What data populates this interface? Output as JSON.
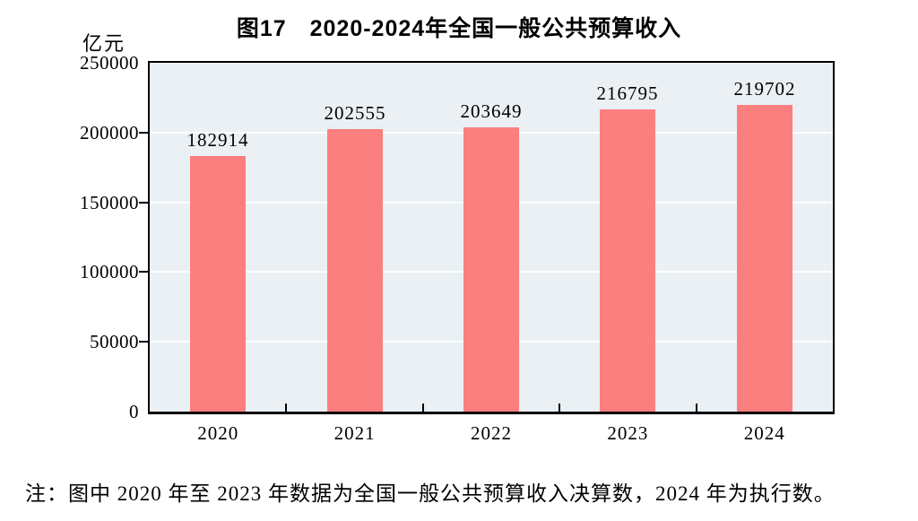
{
  "chart_data": {
    "type": "bar",
    "title": "图17　2020-2024年全国一般公共预算收入",
    "unit_label": "亿元",
    "categories": [
      "2020",
      "2021",
      "2022",
      "2023",
      "2024"
    ],
    "values": [
      182914,
      202555,
      203649,
      216795,
      219702
    ],
    "value_labels": [
      "182914",
      "202555",
      "203649",
      "216795",
      "219702"
    ],
    "ylim": [
      0,
      250000
    ],
    "ytick_interval": 50000,
    "ytick_labels": [
      "0",
      "50000",
      "100000",
      "150000",
      "200000",
      "250000"
    ],
    "grid": "horizontal-white-lines",
    "legend": "none",
    "bar_color": "#fc7f7f",
    "plot_bg_color": "#eaf0f4",
    "axis_color": "#000000"
  },
  "footnote": "注：图中 2020 年至 2023 年数据为全国一般公共预算收入决算数，2024 年为执行数。"
}
